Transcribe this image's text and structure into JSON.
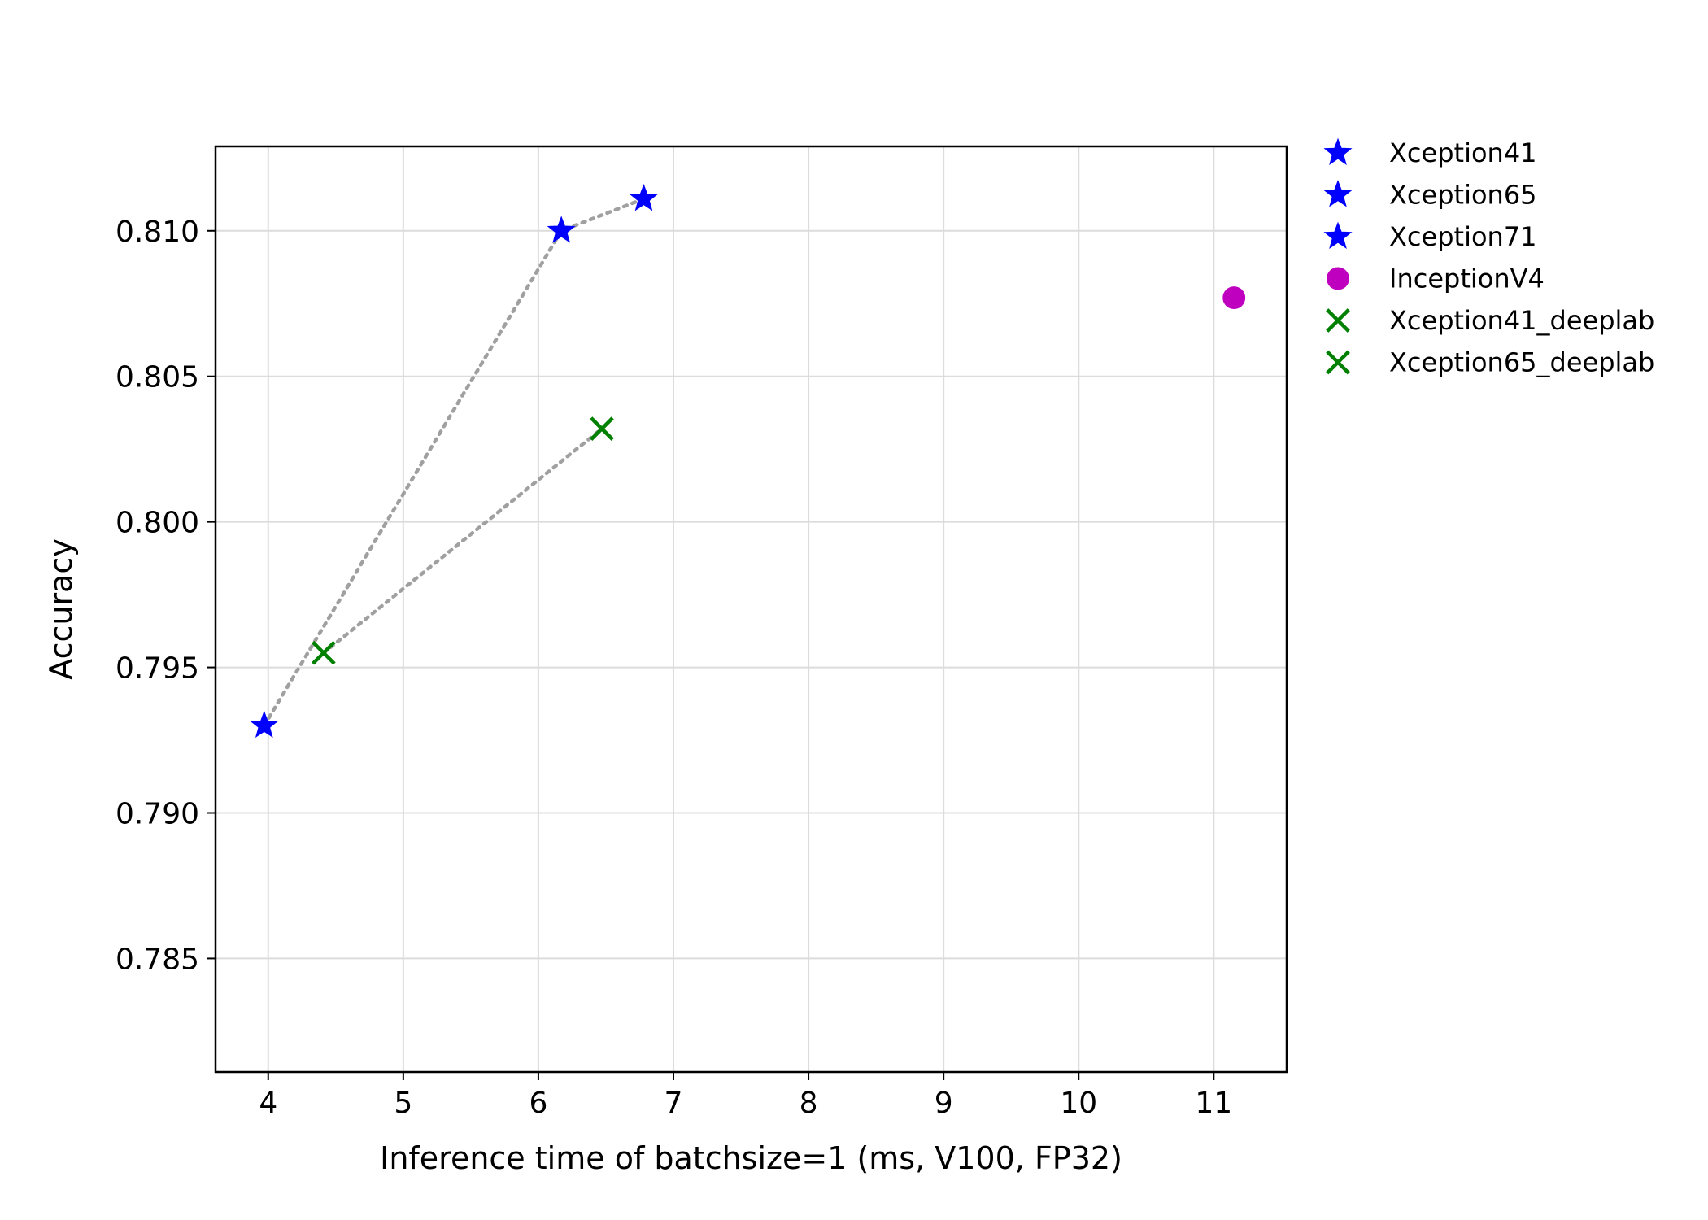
{
  "chart_data": {
    "type": "scatter",
    "xlabel": "Inference time of batchsize=1 (ms, V100, FP32)",
    "ylabel": "Accuracy",
    "xlim": [
      3.61,
      11.54
    ],
    "ylim": [
      0.7811,
      0.8129
    ],
    "xticks": [
      4,
      5,
      6,
      7,
      8,
      9,
      10,
      11
    ],
    "xtick_labels": [
      "4",
      "5",
      "6",
      "7",
      "8",
      "9",
      "10",
      "11"
    ],
    "yticks": [
      0.785,
      0.79,
      0.795,
      0.8,
      0.805,
      0.81
    ],
    "ytick_labels": [
      "0.785",
      "0.790",
      "0.795",
      "0.800",
      "0.805",
      "0.810"
    ],
    "grid": true,
    "legend_position": "outside-right",
    "series": [
      {
        "name": "Xception41",
        "marker": "star",
        "color": "#0000ff",
        "points": [
          {
            "x": 3.97,
            "y": 0.793
          }
        ]
      },
      {
        "name": "Xception65",
        "marker": "star",
        "color": "#0000ff",
        "points": [
          {
            "x": 6.17,
            "y": 0.81
          }
        ]
      },
      {
        "name": "Xception71",
        "marker": "star",
        "color": "#0000ff",
        "points": [
          {
            "x": 6.78,
            "y": 0.8111
          }
        ]
      },
      {
        "name": "InceptionV4",
        "marker": "circle",
        "color": "#bf00bf",
        "points": [
          {
            "x": 11.15,
            "y": 0.8077
          }
        ]
      },
      {
        "name": "Xception41_deeplab",
        "marker": "x",
        "color": "#008000",
        "points": [
          {
            "x": 4.41,
            "y": 0.7955
          }
        ]
      },
      {
        "name": "Xception65_deeplab",
        "marker": "x",
        "color": "#008000",
        "points": [
          {
            "x": 6.47,
            "y": 0.8032
          }
        ]
      }
    ],
    "connector_lines": [
      {
        "style": "dotted",
        "color": "#a0a0a0",
        "points": [
          {
            "x": 3.97,
            "y": 0.793
          },
          {
            "x": 6.17,
            "y": 0.81
          },
          {
            "x": 6.78,
            "y": 0.8111
          }
        ]
      },
      {
        "style": "dotted",
        "color": "#a0a0a0",
        "points": [
          {
            "x": 4.41,
            "y": 0.7955
          },
          {
            "x": 6.47,
            "y": 0.8032
          }
        ]
      }
    ]
  }
}
